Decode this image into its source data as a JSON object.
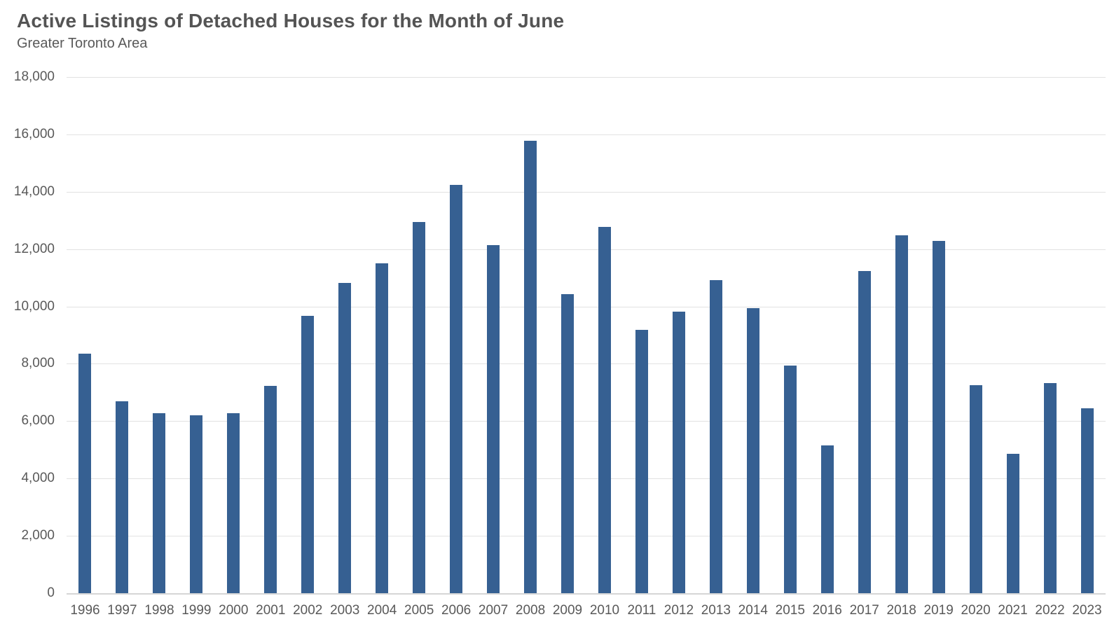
{
  "header": {
    "title": "Active Listings of Detached Houses for the Month of June",
    "subtitle": "Greater Toronto Area"
  },
  "colors": {
    "bar": "#366092",
    "gridline": "#e2e2e2",
    "baseline": "#d6d6d6",
    "title_text": "#545454",
    "axis_text": "#595959",
    "background": "#ffffff"
  },
  "chart_data": {
    "type": "bar",
    "title": "Active Listings of Detached Houses for the Month of June",
    "subtitle": "Greater Toronto Area",
    "categories": [
      "1996",
      "1997",
      "1998",
      "1999",
      "2000",
      "2001",
      "2002",
      "2003",
      "2004",
      "2005",
      "2006",
      "2007",
      "2008",
      "2009",
      "2010",
      "2011",
      "2012",
      "2013",
      "2014",
      "2015",
      "2016",
      "2017",
      "2018",
      "2019",
      "2020",
      "2021",
      "2022",
      "2023"
    ],
    "values": [
      8350,
      6690,
      6280,
      6200,
      6280,
      7240,
      9670,
      10820,
      11510,
      12950,
      14250,
      12150,
      15770,
      10430,
      12780,
      9190,
      9820,
      10910,
      9950,
      7930,
      5150,
      11240,
      12490,
      12290,
      7250,
      4870,
      7330,
      6460
    ],
    "xlabel": "",
    "ylabel": "",
    "ylim": [
      0,
      18000
    ],
    "yticks": [
      0,
      2000,
      4000,
      6000,
      8000,
      10000,
      12000,
      14000,
      16000,
      18000
    ],
    "ytick_labels": [
      "0",
      "2,000",
      "4,000",
      "6,000",
      "8,000",
      "10,000",
      "12,000",
      "14,000",
      "16,000",
      "18,000"
    ],
    "grid": true,
    "legend": false,
    "bar_color": "#366092"
  }
}
